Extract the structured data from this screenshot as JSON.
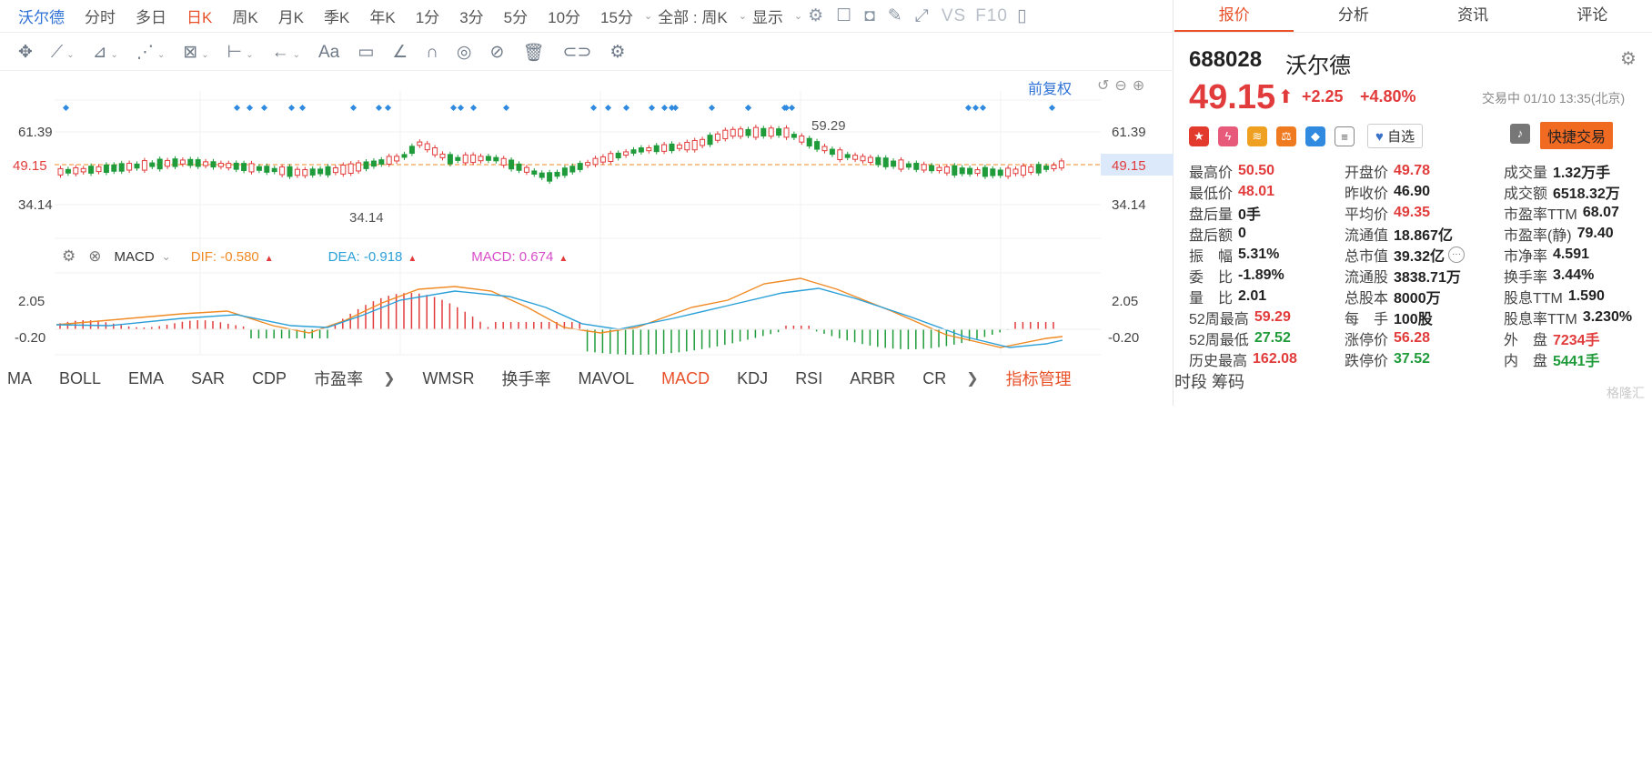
{
  "period_bar": {
    "stock_name": "沃尔德",
    "periods": [
      "分时",
      "多日",
      "日K",
      "周K",
      "月K",
      "季K",
      "年K",
      "1分",
      "3分",
      "5分",
      "10分",
      "15分"
    ],
    "active_period": "日K",
    "adjust_label": "全部 : 周K",
    "display_label": "显示",
    "vs_label": "VS",
    "f10_label": "F10"
  },
  "chart": {
    "restore_label": "前复权",
    "price_ticks": [
      "61.39",
      "34.14"
    ],
    "current_price_label": "49.15",
    "high_marker": "59.29",
    "low_marker": "34.14",
    "colors": {
      "up": "#e23b3b",
      "down": "#1f9b3a",
      "ma_orange": "#f08a24",
      "ma_blue": "#2ba0d8"
    }
  },
  "macd": {
    "name": "MACD",
    "dif_label": "DIF: -0.580",
    "dea_label": "DEA: -0.918",
    "macd_label": "MACD: 0.674",
    "ticks": [
      "2.05",
      "-0.20"
    ]
  },
  "indicator_bar": {
    "items": [
      "MA",
      "BOLL",
      "EMA",
      "SAR",
      "CDP",
      "市盈率"
    ],
    "items2": [
      "WMSR",
      "换手率",
      "MAVOL",
      "MACD",
      "KDJ",
      "RSI",
      "ARBR",
      "CR"
    ],
    "active": "MACD",
    "manage_label": "指标管理",
    "right_label": "时段 筹码"
  },
  "tabs": [
    "报价",
    "分析",
    "资讯",
    "评论"
  ],
  "active_tab": "报价",
  "quote": {
    "code": "688028",
    "name": "沃尔德",
    "price": "49.15",
    "change": "+2.25",
    "change_pct": "+4.80%",
    "status": "交易中 01/10 13:35(北京)",
    "watch_label": "自选",
    "quick_trade_label": "快捷交易"
  },
  "stats": [
    [
      {
        "l": "最高价",
        "v": "50.50",
        "c": "r"
      },
      {
        "l": "开盘价",
        "v": "49.78",
        "c": "r"
      },
      {
        "l": "成交量",
        "v": "1.32万手",
        "c": ""
      }
    ],
    [
      {
        "l": "最低价",
        "v": "48.01",
        "c": "r"
      },
      {
        "l": "昨收价",
        "v": "46.90",
        "c": ""
      },
      {
        "l": "成交额",
        "v": "6518.32万",
        "c": ""
      }
    ],
    [
      {
        "l": "盘后量",
        "v": "0手",
        "c": ""
      },
      {
        "l": "平均价",
        "v": "49.35",
        "c": "r"
      },
      {
        "l": "市盈率TTM",
        "v": "68.07",
        "c": ""
      }
    ],
    [
      {
        "l": "盘后额",
        "v": "0",
        "c": ""
      },
      {
        "l": "流通值",
        "v": "18.867亿",
        "c": ""
      },
      {
        "l": "市盈率(静)",
        "v": "79.40",
        "c": ""
      }
    ],
    [
      {
        "l": "振　幅",
        "v": "5.31%",
        "c": ""
      },
      {
        "l": "总市值",
        "v": "39.32亿",
        "c": ""
      },
      {
        "l": "市净率",
        "v": "4.591",
        "c": ""
      }
    ],
    [
      {
        "l": "委　比",
        "v": "-1.89%",
        "c": ""
      },
      {
        "l": "流通股",
        "v": "3838.71万",
        "c": ""
      },
      {
        "l": "换手率",
        "v": "3.44%",
        "c": ""
      }
    ],
    [
      {
        "l": "量　比",
        "v": "2.01",
        "c": ""
      },
      {
        "l": "总股本",
        "v": "8000万",
        "c": ""
      },
      {
        "l": "股息TTM",
        "v": "1.590",
        "c": ""
      }
    ],
    [
      {
        "l": "52周最高",
        "v": "59.29",
        "c": "r"
      },
      {
        "l": "每　手",
        "v": "100股",
        "c": ""
      },
      {
        "l": "股息率TTM",
        "v": "3.230%",
        "c": ""
      }
    ],
    [
      {
        "l": "52周最低",
        "v": "27.52",
        "c": "g"
      },
      {
        "l": "涨停价",
        "v": "56.28",
        "c": "r"
      },
      {
        "l": "外　盘",
        "v": "7234手",
        "c": "r"
      }
    ],
    [
      {
        "l": "历史最高",
        "v": "162.08",
        "c": "r"
      },
      {
        "l": "跌停价",
        "v": "37.52",
        "c": "g"
      },
      {
        "l": "内　盘",
        "v": "5441手",
        "c": "g"
      }
    ]
  ],
  "watermark": "格隆汇"
}
